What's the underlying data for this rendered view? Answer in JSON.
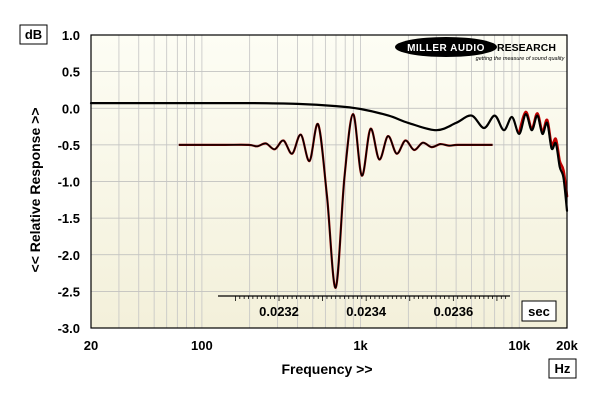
{
  "chart_data": {
    "type": "line",
    "xscale": "log",
    "xlim": [
      20,
      20000
    ],
    "ylim": [
      -3.0,
      1.0
    ],
    "yticks": [
      "1.0",
      "0.5",
      "0.0",
      "-0.5",
      "-1.0",
      "-1.5",
      "-2.0",
      "-2.5",
      "-3.0"
    ],
    "ytick_values": [
      1.0,
      0.5,
      0.0,
      -0.5,
      -1.0,
      -1.5,
      -2.0,
      -2.5,
      -3.0
    ],
    "xticks": [
      "20",
      "100",
      "1k",
      "10k",
      "20k"
    ],
    "xtick_values": [
      20,
      100,
      1000,
      10000,
      20000
    ],
    "ylabel": "<< Relative Response >>",
    "xlabel": "Frequency >>",
    "yunit": "dB",
    "xunit": "Hz",
    "grid": true,
    "series": [
      {
        "color": "#000000",
        "x": [
          20,
          50,
          100,
          200,
          400,
          700,
          1000,
          1500,
          2000,
          3000,
          4000,
          5000,
          6000,
          7000,
          8000,
          9000,
          10000,
          11000,
          12000,
          13000,
          14000,
          15000,
          16000,
          17000,
          18000,
          19000,
          20000
        ],
        "y": [
          0.07,
          0.07,
          0.07,
          0.07,
          0.06,
          0.03,
          -0.01,
          -0.1,
          -0.2,
          -0.3,
          -0.2,
          -0.1,
          -0.27,
          -0.1,
          -0.3,
          -0.12,
          -0.35,
          -0.08,
          -0.3,
          -0.1,
          -0.35,
          -0.2,
          -0.55,
          -0.48,
          -0.8,
          -0.95,
          -1.4
        ]
      },
      {
        "color": "#c00000",
        "x": [
          10000,
          11000,
          12000,
          13000,
          14000,
          15000,
          16000,
          17000,
          18000,
          19000,
          20000
        ],
        "y": [
          -0.33,
          -0.05,
          -0.28,
          -0.07,
          -0.32,
          -0.16,
          -0.5,
          -0.42,
          -0.72,
          -0.85,
          -1.2
        ]
      }
    ],
    "inset": {
      "type": "line",
      "xlabel_unit": "sec",
      "xticks": [
        "0.0232",
        "0.0234",
        "0.0236"
      ],
      "xtick_values": [
        0.0232,
        0.0234,
        0.0236
      ],
      "xlim": [
        0.02306,
        0.02373
      ],
      "baseline": -0.5,
      "x": [
        0.02297,
        0.02307,
        0.02313,
        0.02315,
        0.02317,
        0.02319,
        0.02321,
        0.02323,
        0.02325,
        0.02327,
        0.02329,
        0.02331,
        0.02333,
        0.02335,
        0.02337,
        0.02339,
        0.02341,
        0.02343,
        0.02345,
        0.02347,
        0.02349,
        0.02351,
        0.02353,
        0.02355,
        0.02357,
        0.02359,
        0.02361,
        0.02365,
        0.02369
      ],
      "y": [
        -0.5,
        -0.5,
        -0.5,
        -0.52,
        -0.48,
        -0.56,
        -0.44,
        -0.62,
        -0.36,
        -0.72,
        -0.22,
        -1.2,
        -2.45,
        -0.95,
        -0.08,
        -0.92,
        -0.28,
        -0.7,
        -0.38,
        -0.62,
        -0.44,
        -0.57,
        -0.47,
        -0.53,
        -0.49,
        -0.51,
        -0.5,
        -0.5,
        -0.5
      ]
    }
  },
  "logo": {
    "name_part1": "MILLER AUDIO",
    "name_part2": "RESEARCH",
    "tagline": "getting the measure of sound quality"
  }
}
